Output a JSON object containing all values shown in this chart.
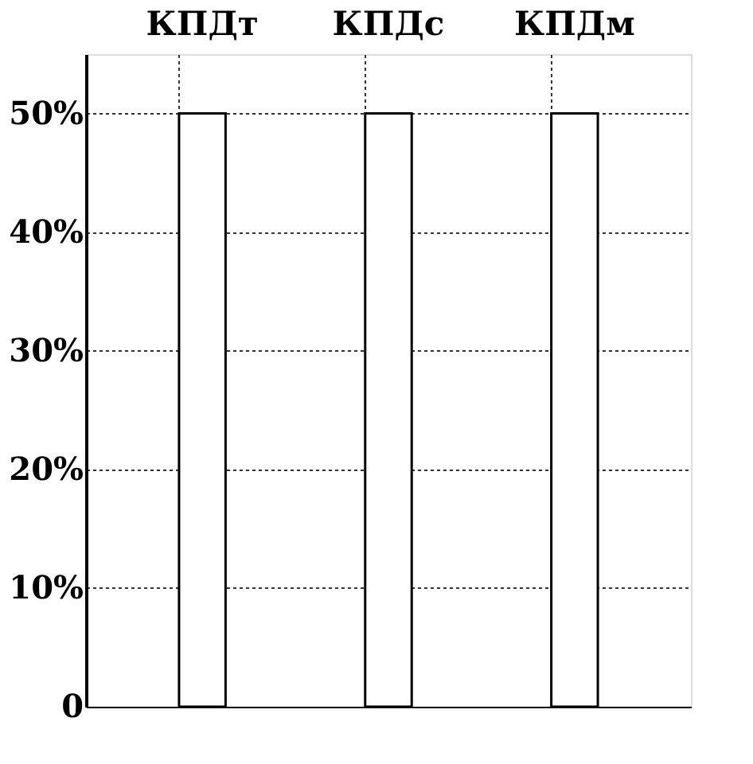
{
  "chart_data": {
    "type": "bar",
    "categories": [
      "КПДт",
      "КПДс",
      "КПДм"
    ],
    "values": [
      50,
      50,
      50
    ],
    "color": "#ffffff",
    "ylim": [
      0,
      55
    ],
    "yticks": [
      0,
      {
        "value": 10,
        "label": "10%"
      },
      {
        "value": 20,
        "label": "20%"
      },
      {
        "value": 30,
        "label": "30%"
      },
      {
        "value": 40,
        "label": "40%"
      },
      {
        "value": 50,
        "label": "50%"
      }
    ],
    "grid": true
  }
}
